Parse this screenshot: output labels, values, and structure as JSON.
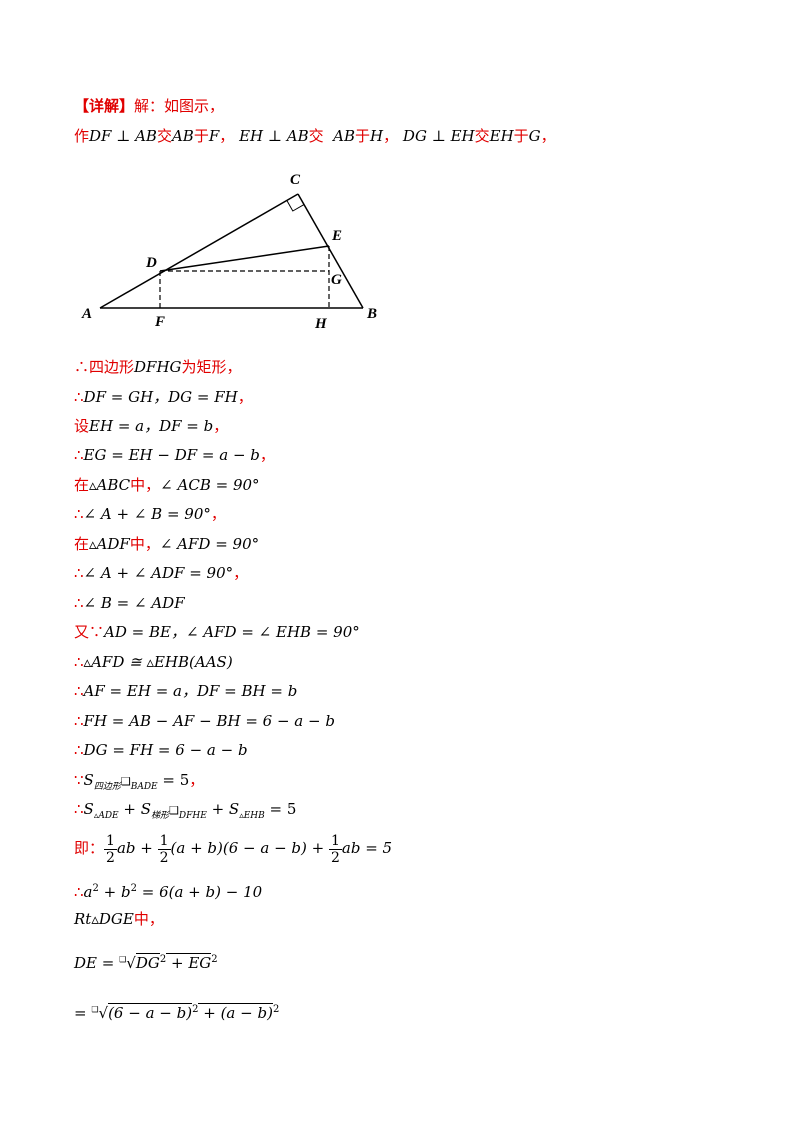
{
  "header": {
    "label": "【详解】",
    "text": "解：如图示，"
  },
  "construction": {
    "p1": "作",
    "s1": "DF ⊥ AB",
    "p2": "交",
    "s2": "AB",
    "p3": "于",
    "s3": "F",
    "p4": "，",
    "s4": "EH ⊥ AB",
    "p5": "交",
    "s5": "AB",
    "p6": "于",
    "s6": "H",
    "p7": "，",
    "s7": "DG ⊥ EH",
    "p8": "交",
    "s8": "EH",
    "p9": "于",
    "s9": "G",
    "p10": "，"
  },
  "figure": {
    "labels": {
      "A": "A",
      "B": "B",
      "C": "C",
      "D": "D",
      "E": "E",
      "F": "F",
      "G": "G",
      "H": "H"
    }
  },
  "steps": {
    "l1": {
      "a": "∴",
      "b": "四边形",
      "c": "DFHG",
      "d": "为矩形，"
    },
    "l2": {
      "a": "∴",
      "b": "DF = GH，DG = FH",
      "c": "，"
    },
    "l3": {
      "a": "设",
      "b": "EH = a，DF = b",
      "c": "，"
    },
    "l4": {
      "a": "∴",
      "b": "EG = EH − DF = a − b",
      "c": "，"
    },
    "l5": {
      "a": "在",
      "b": "▵ABC",
      "c": "中，",
      "d": "∠ ACB = 90°"
    },
    "l6": {
      "a": "∴",
      "b": "∠ A + ∠ B = 90°",
      "c": "，"
    },
    "l7": {
      "a": "在",
      "b": "▵ADF",
      "c": "中，",
      "d": "∠ AFD = 90°"
    },
    "l8": {
      "a": "∴",
      "b": "∠ A + ∠ ADF = 90°",
      "c": "，"
    },
    "l9": {
      "a": "∴",
      "b": "∠ B = ∠ ADF"
    },
    "l10": {
      "a": "又∵",
      "b": "AD = BE，∠ AFD = ∠ EHB = 90°"
    },
    "l11": {
      "a": "∴",
      "b": "▵AFD ≅ ▵EHB(AAS)"
    },
    "l12": {
      "a": "∴",
      "b": "AF = EH = a，DF = BH = b"
    },
    "l13": {
      "a": "∴",
      "b": "FH = AB − AF − BH = 6 − a − b"
    },
    "l14": {
      "a": "∴",
      "b": "DG = FH = 6 − a − b"
    },
    "l15": {
      "a": "∵",
      "b": "S",
      "c": "四边形",
      "d": "❑",
      "e": "BADE",
      "f": " = 5",
      "g": "，"
    },
    "l16": {
      "a": "∴",
      "b": "S",
      "c": "▵ADE",
      "d": " + S",
      "e": "梯形",
      "f": "❑",
      "g": "DFHE",
      "h": " + S",
      "i": "▵EHB",
      "j": " = 5"
    },
    "l17": {
      "a": "即：",
      "n1": "1",
      "d1": "2",
      "t1": "ab + ",
      "n2": "1",
      "d2": "2",
      "t2": "(a + b)(6 − a − b) + ",
      "n3": "1",
      "d3": "2",
      "t3": "ab = 5"
    },
    "l18": {
      "a": "∴",
      "b": "a",
      "c": "2",
      "d": " + b",
      "e": "2",
      "f": " = 6(a + b) − 10"
    },
    "l19": {
      "a": "Rt",
      "b": "▵DGE",
      "c": "中，"
    },
    "l20": {
      "a": "DE = ",
      "b": "❑",
      "c": "√",
      "d": "DG",
      "e": "2",
      "f": " + EG",
      "g": "2"
    },
    "l21": {
      "a": "= ",
      "b": "❑",
      "c": "√",
      "d": "(6 − a − b)",
      "e": "2",
      "f": " + (a − b)",
      "g": "2"
    }
  }
}
